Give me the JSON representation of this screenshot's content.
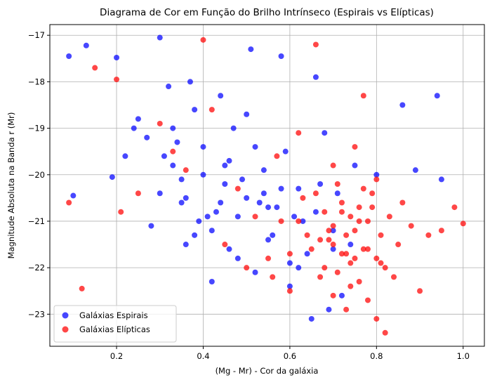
{
  "chart_data": {
    "type": "scatter",
    "title": "Diagrama de Cor em Função do Brilho Intrínseco (Espirais vs Elípticas)",
    "x_label": "(Mg - Mr) - Cor da galáxia",
    "y_label": "Magnitude Absoluta na Banda r (Mr)",
    "xlim": [
      0.046,
      1.049
    ],
    "ylim": [
      -23.69,
      -16.77
    ],
    "y_inverted": true,
    "xticks": [
      0.2,
      0.4,
      0.6,
      0.8,
      {
        "value": 1,
        "label": "1.0"
      }
    ],
    "yticks": [
      {
        "value": -17,
        "label": "−17"
      },
      {
        "value": -18,
        "label": "−18"
      },
      {
        "value": -19,
        "label": "−19"
      },
      {
        "value": -20,
        "label": "−20"
      },
      {
        "value": -21,
        "label": "−21"
      },
      {
        "value": -22,
        "label": "−22"
      },
      {
        "value": -23,
        "label": "−23"
      }
    ],
    "grid": true,
    "legend": "lower left",
    "series": [
      {
        "name": "Galáxias Espirais",
        "color": "#0000ff",
        "x": [
          0.09,
          0.1,
          0.13,
          0.2,
          0.19,
          0.22,
          0.25,
          0.27,
          0.3,
          0.32,
          0.33,
          0.35,
          0.36,
          0.38,
          0.4,
          0.41,
          0.42,
          0.44,
          0.45,
          0.46,
          0.48,
          0.5,
          0.51,
          0.52,
          0.54,
          0.55,
          0.57,
          0.58,
          0.6,
          0.62,
          0.63,
          0.65,
          0.66,
          0.68,
          0.7,
          0.72,
          0.75,
          0.8,
          0.86,
          0.89,
          0.94,
          0.95,
          0.3,
          0.34,
          0.37,
          0.39,
          0.43,
          0.47,
          0.49,
          0.53,
          0.56,
          0.59,
          0.61,
          0.64,
          0.67,
          0.69,
          0.71,
          0.31,
          0.35,
          0.38,
          0.42,
          0.45,
          0.5,
          0.55,
          0.6,
          0.28,
          0.24,
          0.36,
          0.4,
          0.46,
          0.52,
          0.58,
          0.62,
          0.66,
          0.7,
          0.33,
          0.44,
          0.48,
          0.54,
          0.74
        ],
        "values": [
          -17.45,
          -20.45,
          -17.22,
          -17.48,
          -20.05,
          -19.6,
          -18.8,
          -19.2,
          -17.05,
          -18.1,
          -19.8,
          -20.6,
          -21.5,
          -18.6,
          -19.4,
          -20.9,
          -21.2,
          -18.3,
          -20.2,
          -19.7,
          -21.8,
          -20.5,
          -17.3,
          -22.1,
          -19.9,
          -21.4,
          -20.7,
          -17.45,
          -22.4,
          -20.3,
          -21.0,
          -23.1,
          -17.9,
          -19.1,
          -21.6,
          -22.6,
          -19.8,
          -20.0,
          -18.5,
          -19.9,
          -18.3,
          -20.1,
          -20.4,
          -19.3,
          -18.0,
          -21.0,
          -20.8,
          -19.0,
          -20.1,
          -20.6,
          -21.3,
          -19.5,
          -20.9,
          -21.7,
          -20.2,
          -22.9,
          -20.4,
          -19.6,
          -20.1,
          -21.3,
          -22.3,
          -19.8,
          -18.7,
          -20.7,
          -21.9,
          -21.1,
          -19.0,
          -20.5,
          -20.0,
          -21.6,
          -19.4,
          -20.3,
          -22.0,
          -20.8,
          -21.2,
          -19.0,
          -20.6,
          -20.9,
          -20.4,
          -21.5
        ]
      },
      {
        "name": "Galáxias Elípticas",
        "color": "#ff0000",
        "x": [
          0.09,
          0.12,
          0.15,
          0.2,
          0.21,
          0.25,
          0.3,
          0.33,
          0.36,
          0.4,
          0.42,
          0.45,
          0.48,
          0.5,
          0.52,
          0.55,
          0.57,
          0.6,
          0.62,
          0.63,
          0.65,
          0.66,
          0.67,
          0.68,
          0.69,
          0.7,
          0.7,
          0.71,
          0.72,
          0.72,
          0.73,
          0.73,
          0.74,
          0.74,
          0.75,
          0.75,
          0.76,
          0.76,
          0.77,
          0.77,
          0.78,
          0.78,
          0.79,
          0.8,
          0.8,
          0.81,
          0.82,
          0.83,
          0.84,
          0.85,
          0.86,
          0.88,
          0.9,
          0.92,
          0.95,
          0.98,
          1.0,
          0.6,
          0.64,
          0.66,
          0.68,
          0.7,
          0.72,
          0.74,
          0.76,
          0.78,
          0.8,
          0.82,
          0.58,
          0.56,
          0.62,
          0.7,
          0.73,
          0.77,
          0.71,
          0.69,
          0.75,
          0.79,
          0.67,
          0.81
        ],
        "values": [
          -20.6,
          -22.45,
          -17.7,
          -17.95,
          -20.8,
          -20.4,
          -18.9,
          -19.5,
          -19.9,
          -17.1,
          -18.6,
          -21.5,
          -20.3,
          -22.0,
          -20.9,
          -21.8,
          -19.6,
          -22.5,
          -21.0,
          -20.5,
          -21.6,
          -17.2,
          -22.2,
          -20.8,
          -21.4,
          -21.1,
          -22.6,
          -20.2,
          -21.7,
          -20.6,
          -21.3,
          -22.9,
          -20.9,
          -21.9,
          -21.2,
          -19.4,
          -22.3,
          -20.7,
          -21.6,
          -18.3,
          -21.0,
          -22.7,
          -20.4,
          -21.8,
          -23.1,
          -21.3,
          -23.4,
          -20.9,
          -22.2,
          -21.5,
          -20.6,
          -21.1,
          -22.5,
          -21.3,
          -21.2,
          -20.7,
          -21.05,
          -21.7,
          -21.3,
          -20.4,
          -22.0,
          -21.5,
          -20.8,
          -22.4,
          -21.0,
          -21.6,
          -20.1,
          -22.0,
          -21.0,
          -22.2,
          -19.1,
          -19.8,
          -21.7,
          -20.3,
          -22.1,
          -21.2,
          -21.8,
          -20.7,
          -21.4,
          -21.9
        ]
      }
    ]
  }
}
